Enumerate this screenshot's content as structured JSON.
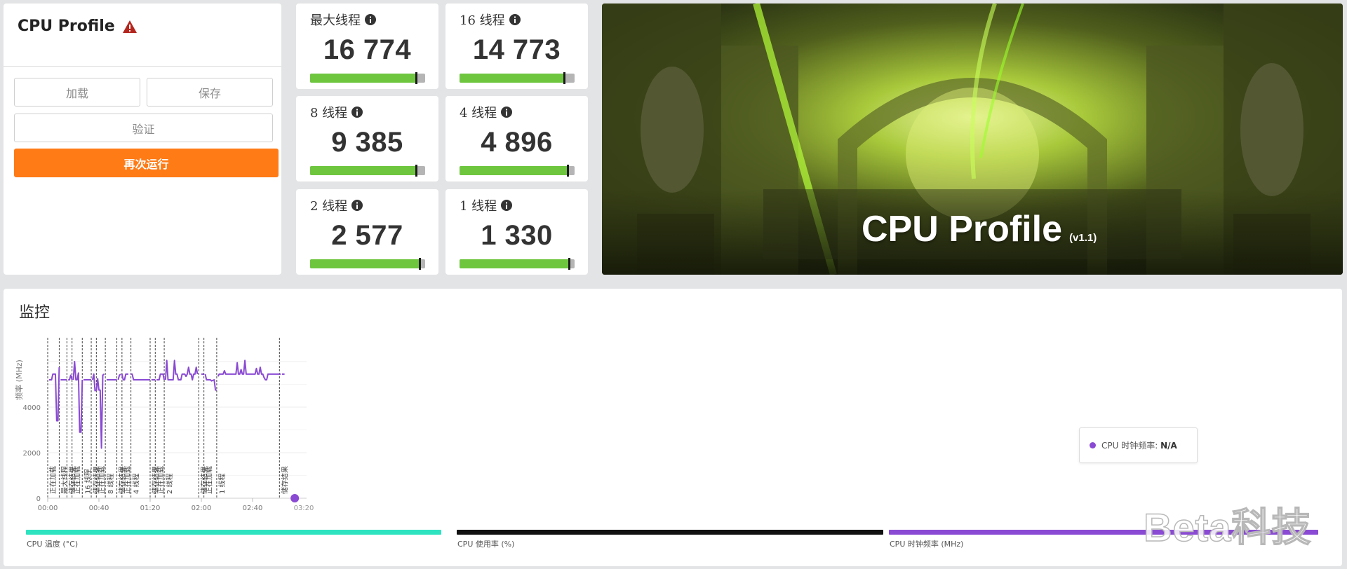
{
  "left_panel": {
    "title": "CPU Profile",
    "buttons": {
      "load": "加载",
      "save": "保存",
      "validate": "验证",
      "rerun": "再次运行"
    }
  },
  "scores": [
    {
      "label": "最大线程",
      "value": "16 774",
      "fill_fraction": 0.92
    },
    {
      "label": "16 线程",
      "value": "14 773",
      "fill_fraction": 0.91
    },
    {
      "label": "8 线程",
      "value": "9 385",
      "fill_fraction": 0.92
    },
    {
      "label": "4 线程",
      "value": "4 896",
      "fill_fraction": 0.94
    },
    {
      "label": "2 线程",
      "value": "2 577",
      "fill_fraction": 0.95
    },
    {
      "label": "1 线程",
      "value": "1 330",
      "fill_fraction": 0.95
    }
  ],
  "banner": {
    "title": "CPU Profile",
    "version": "(v1.1)"
  },
  "monitor": {
    "title": "监控",
    "y_axis_label": "频率 (MHz)",
    "y_ticks": [
      "0",
      "2000",
      "4000"
    ],
    "x_ticks": [
      "00:00",
      "00:40",
      "01:20",
      "02:00",
      "02:40"
    ],
    "x_tick_partial": "03:20",
    "tooltip": {
      "label": "CPU 时钟频率: ",
      "value": "N/A"
    },
    "legend": [
      {
        "label": "CPU 温度 (°C)",
        "color": "#2de3c0"
      },
      {
        "label": "CPU 使用率 (%)",
        "color": "#111111"
      },
      {
        "label": "CPU 时钟频率 (MHz)",
        "color": "#8a4ad3"
      }
    ]
  },
  "chart_data": {
    "type": "line",
    "title": "",
    "xlabel": "",
    "ylabel": "频率 (MHz)",
    "x_unit": "mm:ss",
    "xlim": [
      "00:00",
      "03:20"
    ],
    "ylim": [
      0,
      7000
    ],
    "grid": true,
    "series": [
      {
        "name": "CPU 时钟频率 (MHz)",
        "color": "#8a4ad3",
        "segments": [
          [
            [
              "00:01",
              5200
            ],
            [
              "00:03",
              5200
            ],
            [
              "00:04",
              5450
            ],
            [
              "00:06",
              5450
            ],
            [
              "00:07",
              3400
            ],
            [
              "00:08",
              3400
            ],
            [
              "00:09",
              5750
            ]
          ],
          [
            [
              "00:10",
              5200
            ],
            [
              "00:15",
              5200
            ]
          ],
          [
            [
              "00:16",
              5200
            ],
            [
              "00:17",
              5200
            ],
            [
              "00:18",
              5400
            ],
            [
              "00:19",
              5200
            ]
          ],
          [
            [
              "00:20",
              5200
            ],
            [
              "00:21",
              6000
            ],
            [
              "00:22",
              5200
            ],
            [
              "00:23",
              5200
            ],
            [
              "00:24",
              5500
            ],
            [
              "00:25",
              2900
            ],
            [
              "00:26",
              2900
            ],
            [
              "00:27",
              5200
            ]
          ],
          [
            [
              "00:28",
              5200
            ],
            [
              "00:34",
              5200
            ]
          ],
          [
            [
              "00:35",
              5200
            ],
            [
              "00:36",
              5450
            ],
            [
              "00:37",
              4700
            ]
          ],
          [
            [
              "00:38",
              4700
            ],
            [
              "00:39",
              5250
            ],
            [
              "00:40",
              4750
            ],
            [
              "00:41",
              4750
            ],
            [
              "00:42",
              2200
            ],
            [
              "00:43",
              5400
            ],
            [
              "00:44",
              5450
            ]
          ],
          [
            [
              "00:46",
              5200
            ],
            [
              "00:54",
              5200
            ]
          ],
          [
            [
              "00:55",
              5200
            ],
            [
              "00:56",
              5400
            ],
            [
              "00:57",
              5450
            ]
          ],
          [
            [
              "00:58",
              5450
            ],
            [
              "00:59",
              5200
            ],
            [
              "01:00",
              5200
            ],
            [
              "01:01",
              5450
            ],
            [
              "01:03",
              5450
            ]
          ],
          [
            [
              "01:05",
              5450
            ],
            [
              "01:06",
              5450
            ],
            [
              "01:07",
              5200
            ],
            [
              "01:20",
              5200
            ]
          ],
          [
            [
              "01:21",
              5200
            ],
            [
              "01:24",
              5200
            ]
          ],
          [
            [
              "01:25",
              5200
            ],
            [
              "01:27",
              5200
            ],
            [
              "01:28",
              5450
            ],
            [
              "01:30",
              5450
            ],
            [
              "01:31",
              5200
            ]
          ],
          [
            [
              "01:32",
              5200
            ],
            [
              "01:33",
              6050
            ],
            [
              "01:34",
              5200
            ],
            [
              "01:38",
              5200
            ],
            [
              "01:39",
              6050
            ],
            [
              "01:40",
              5450
            ],
            [
              "01:41",
              5450
            ],
            [
              "01:42",
              5200
            ],
            [
              "01:44",
              5200
            ],
            [
              "01:45",
              5450
            ],
            [
              "01:47",
              5450
            ],
            [
              "01:48",
              5350
            ],
            [
              "01:49",
              5450
            ],
            [
              "01:50",
              5750
            ],
            [
              "01:51",
              5450
            ],
            [
              "01:52",
              5450
            ],
            [
              "01:53",
              5200
            ],
            [
              "01:54",
              5450
            ],
            [
              "01:55",
              5450
            ],
            [
              "01:56",
              5750
            ],
            [
              "01:57",
              5450
            ]
          ],
          [
            [
              "02:00",
              5450
            ],
            [
              "02:02",
              5450
            ]
          ],
          [
            [
              "02:03",
              5450
            ],
            [
              "02:04",
              5200
            ],
            [
              "02:07",
              5200
            ],
            [
              "02:08",
              5150
            ],
            [
              "02:10",
              5200
            ],
            [
              "02:11",
              4750
            ],
            [
              "02:12",
              4750
            ]
          ],
          [
            [
              "02:13",
              5350
            ],
            [
              "02:14",
              5450
            ],
            [
              "02:17",
              5450
            ],
            [
              "02:18",
              5600
            ],
            [
              "02:19",
              5450
            ],
            [
              "02:27",
              5450
            ],
            [
              "02:28",
              5950
            ],
            [
              "02:29",
              5450
            ],
            [
              "02:30",
              5450
            ],
            [
              "02:31",
              5650
            ],
            [
              "02:32",
              5450
            ],
            [
              "02:33",
              5450
            ],
            [
              "02:34",
              6050
            ],
            [
              "02:35",
              5450
            ],
            [
              "02:42",
              5450
            ],
            [
              "02:43",
              5700
            ],
            [
              "02:44",
              5450
            ],
            [
              "02:45",
              5450
            ],
            [
              "02:46",
              5750
            ],
            [
              "02:47",
              5450
            ],
            [
              "02:48",
              5450
            ],
            [
              "02:49",
              5300
            ],
            [
              "02:50",
              5200
            ],
            [
              "02:51",
              5200
            ],
            [
              "02:52",
              5450
            ],
            [
              "03:02",
              5450
            ]
          ],
          [
            [
              "03:03",
              5450
            ],
            [
              "03:05",
              5450
            ]
          ]
        ]
      }
    ],
    "phase_markers": [
      {
        "time": "00:00",
        "label": "正在加载"
      },
      {
        "time": "00:09",
        "label": "最大线程"
      },
      {
        "time": "00:15",
        "label": "储存结果"
      },
      {
        "time": "00:19",
        "label": "正在加载"
      },
      {
        "time": "00:27",
        "label": "16 线程"
      },
      {
        "time": "00:34",
        "label": "储存结果"
      },
      {
        "time": "00:38",
        "label": "正在加载"
      },
      {
        "time": "00:45",
        "label": "8 线程"
      },
      {
        "time": "00:54",
        "label": "储存结果"
      },
      {
        "time": "00:58",
        "label": "正在加载"
      },
      {
        "time": "01:05",
        "label": "4 线程"
      },
      {
        "time": "01:20",
        "label": "储存结果"
      },
      {
        "time": "01:24",
        "label": "正在加载"
      },
      {
        "time": "01:31",
        "label": "2 线程"
      },
      {
        "time": "01:58",
        "label": "储存结果"
      },
      {
        "time": "02:02",
        "label": "正在加载"
      },
      {
        "time": "02:12",
        "label": "1 线程"
      },
      {
        "time": "03:01",
        "label": "储存结果"
      }
    ]
  },
  "watermark": "Beta科技"
}
